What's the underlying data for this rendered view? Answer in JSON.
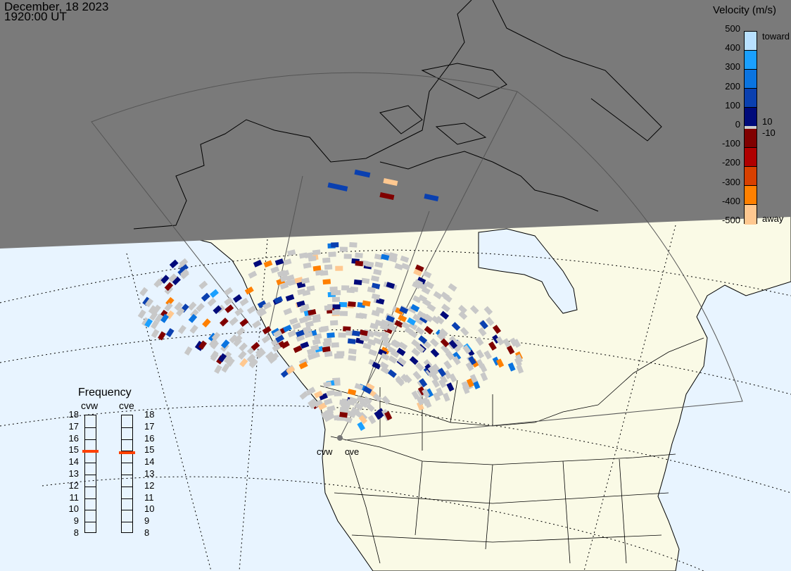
{
  "header": {
    "date": "December, 18 2023",
    "time": "1920:00 UT"
  },
  "colorbar": {
    "title": "Velocity (m/s)",
    "ticks": [
      "500",
      "400",
      "300",
      "200",
      "100",
      "0",
      "-100",
      "-200",
      "-300",
      "-400",
      "-500"
    ],
    "label_toward": "toward",
    "label_away": "away",
    "label_pos_thresh": "10",
    "label_neg_thresh": "-10",
    "colors": [
      "#b8e0ff",
      "#1aa0ff",
      "#0a74e0",
      "#0a40b0",
      "#000a7a",
      "#cccccc",
      "#800000",
      "#b00000",
      "#d84000",
      "#ff8000",
      "#ffc890"
    ]
  },
  "frequency": {
    "title": "Frequency",
    "ticks": [
      "18",
      "17",
      "16",
      "15",
      "14",
      "13",
      "12",
      "11",
      "10",
      "9",
      "8"
    ],
    "radars": [
      {
        "name": "cvw",
        "value_mhz": 14.9
      },
      {
        "name": "cve",
        "value_mhz": 14.8
      }
    ],
    "marker_color": "#ff4000"
  },
  "stations": [
    {
      "name": "cvw"
    },
    {
      "name": "cve"
    }
  ],
  "colors": {
    "night": "#7a7a7a",
    "ocean": "#e8f4ff",
    "land": "#fafae6",
    "ground_scatter": "#c8c8c8"
  }
}
